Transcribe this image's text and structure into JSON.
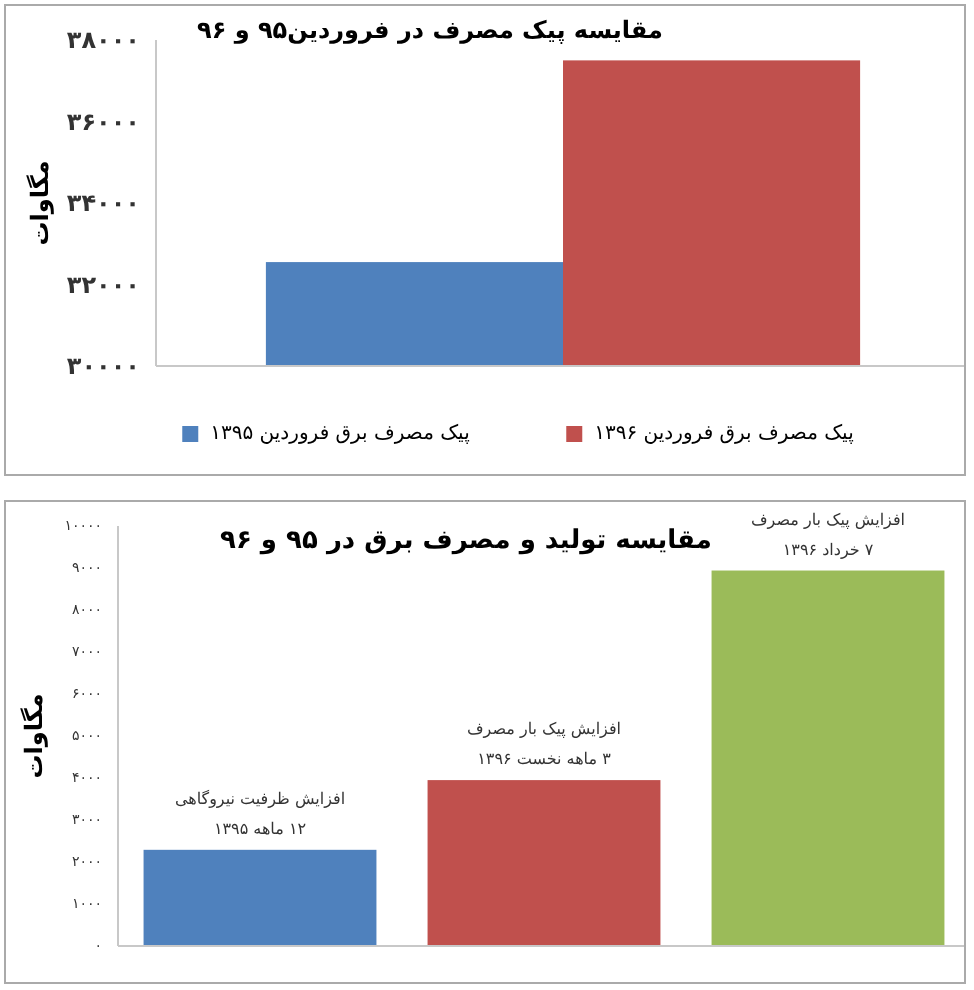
{
  "chart_data": [
    {
      "type": "bar",
      "title": "مقایسه پیک مصرف در فروردین۹۵ و ۹۶",
      "ylabel": "مگاوات",
      "categories": [
        null
      ],
      "series": [
        {
          "name": "پیک مصرف برق فروردین ۱۳۹۵",
          "color": "#4f81bd",
          "values": [
            32550
          ]
        },
        {
          "name": "پیک مصرف برق فروردین ۱۳۹۶",
          "color": "#c0504d",
          "values": [
            37500
          ]
        }
      ],
      "ylim": [
        30000,
        38000
      ],
      "yticks": [
        {
          "value": 30000,
          "label": "۳۰۰۰۰"
        },
        {
          "value": 32000,
          "label": "۳۲۰۰۰"
        },
        {
          "value": 34000,
          "label": "۳۴۰۰۰"
        },
        {
          "value": 36000,
          "label": "۳۶۰۰۰"
        },
        {
          "value": 38000,
          "label": "۳۸۰۰۰"
        }
      ],
      "grid": false,
      "legend": "bottom"
    },
    {
      "type": "bar",
      "title": "مقایسه تولید و مصرف برق در ۹۵ و ۹۶",
      "ylabel": "مگاوات",
      "categories": [
        null,
        null,
        null
      ],
      "values": [
        2290,
        3950,
        8940
      ],
      "colors": [
        "#4f81bd",
        "#c0504d",
        "#9bbb59"
      ],
      "value_labels": [
        "افزایش ظرفیت نیروگاهی\n۱۲ ماهه ۱۳۹۵",
        "افزایش پیک بار مصرف\n۳ ماهه نخست ۱۳۹۶",
        "افزایش پیک بار مصرف\n۷ خرداد ۱۳۹۶"
      ],
      "ylim": [
        0,
        10000
      ],
      "yticks": [
        {
          "value": 0,
          "label": "۰"
        },
        {
          "value": 1000,
          "label": "۱۰۰۰"
        },
        {
          "value": 2000,
          "label": "۲۰۰۰"
        },
        {
          "value": 3000,
          "label": "۳۰۰۰"
        },
        {
          "value": 4000,
          "label": "۴۰۰۰"
        },
        {
          "value": 5000,
          "label": "۵۰۰۰"
        },
        {
          "value": 6000,
          "label": "۶۰۰۰"
        },
        {
          "value": 7000,
          "label": "۷۰۰۰"
        },
        {
          "value": 8000,
          "label": "۸۰۰۰"
        },
        {
          "value": 9000,
          "label": "۹۰۰۰"
        },
        {
          "value": 10000,
          "label": "۱۰۰۰۰"
        }
      ],
      "grid": false
    }
  ]
}
